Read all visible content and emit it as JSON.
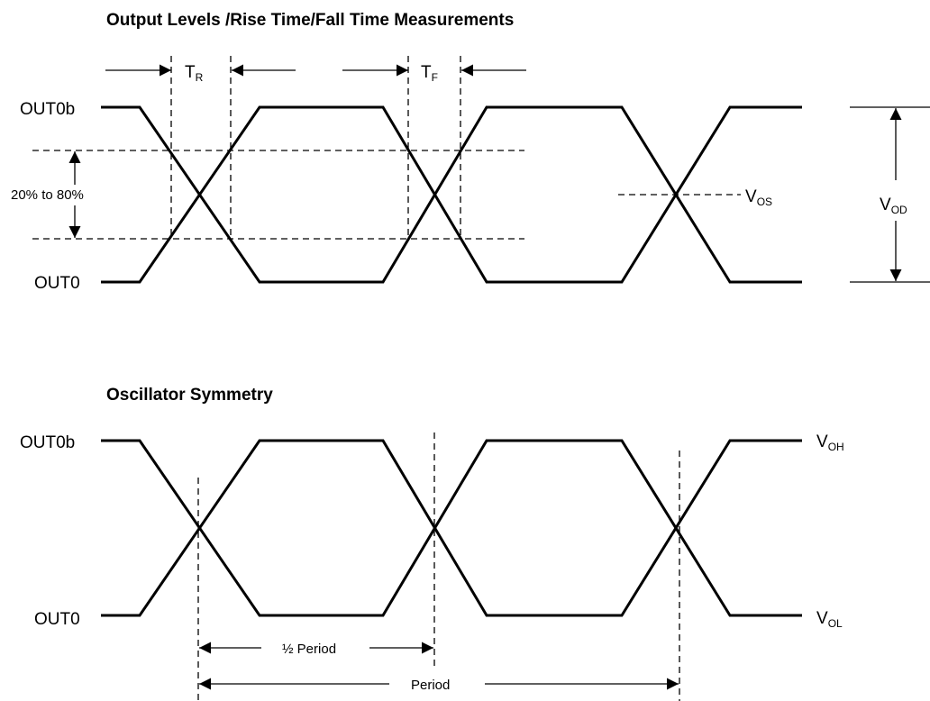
{
  "top": {
    "title": "Output Levels /Rise Time/Fall Time Measurements",
    "out0b_label": "OUT0b",
    "out0_label": "OUT0",
    "range_label": "20% to 80%",
    "tr": {
      "main": "T",
      "sub": "R"
    },
    "tf": {
      "main": "T",
      "sub": "F"
    },
    "vos": {
      "main": "V",
      "sub": "OS"
    },
    "vod": {
      "main": "V",
      "sub": "OD"
    }
  },
  "bottom": {
    "title": "Oscillator Symmetry",
    "out0b_label": "OUT0b",
    "out0_label": "OUT0",
    "voh": {
      "main": "V",
      "sub": "OH"
    },
    "vol": {
      "main": "V",
      "sub": "OL"
    },
    "half_period_label": "½ Period",
    "period_label": "Period"
  }
}
